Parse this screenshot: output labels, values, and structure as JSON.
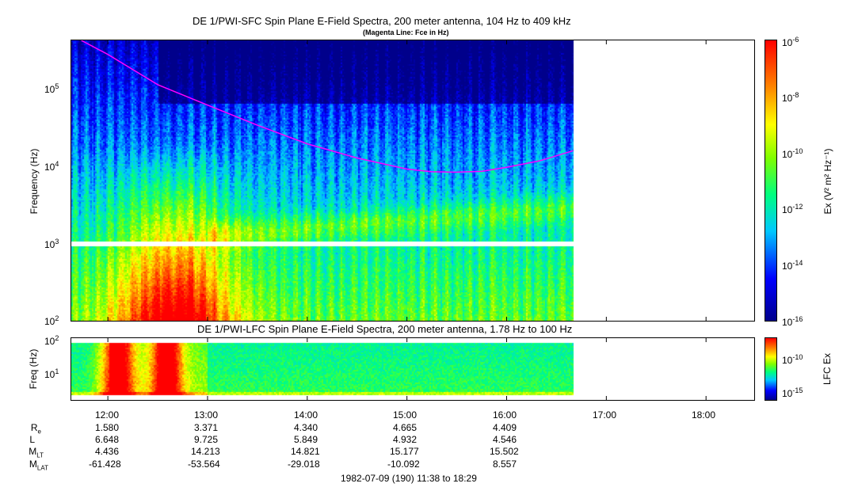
{
  "top_panel": {
    "title": "DE 1/PWI-SFC  Spin Plane E-Field Spectra, 200 meter antenna, 104 Hz to 409 kHz",
    "subtitle": "(Magenta Line: Fce in Hz)",
    "ylabel": "Frequency (Hz)",
    "y_ticks": [
      {
        "base": "10",
        "exp": "5"
      },
      {
        "base": "10",
        "exp": "4"
      },
      {
        "base": "10",
        "exp": "3"
      },
      {
        "base": "10",
        "exp": "2"
      }
    ],
    "colorbar_label": "Ex (V² m² Hz⁻¹)",
    "colorbar_ticks": [
      {
        "base": "10",
        "exp": "-6"
      },
      {
        "base": "10",
        "exp": "-8"
      },
      {
        "base": "10",
        "exp": "-10"
      },
      {
        "base": "10",
        "exp": "-12"
      },
      {
        "base": "10",
        "exp": "-14"
      },
      {
        "base": "10",
        "exp": "-16"
      }
    ]
  },
  "bottom_panel": {
    "title": "DE 1/PWI-LFC  Spin Plane E-Field Spectra, 200 meter antenna, 1.78 Hz to 100 Hz",
    "ylabel": "Freq (Hz)",
    "y_ticks": [
      {
        "base": "10",
        "exp": "2"
      },
      {
        "base": "10",
        "exp": "1"
      }
    ],
    "colorbar_label": "LFC Ex",
    "colorbar_ticks": [
      {
        "base": "10",
        "exp": "-10"
      },
      {
        "base": "10",
        "exp": "-15"
      }
    ]
  },
  "x_ticks": [
    "12:00",
    "13:00",
    "14:00",
    "15:00",
    "16:00",
    "17:00",
    "18:00"
  ],
  "ephemeris": {
    "rows": [
      {
        "name": "R",
        "sub": "e",
        "values": [
          "1.580",
          "3.371",
          "4.340",
          "4.665",
          "4.409"
        ]
      },
      {
        "name": "L",
        "sub": "",
        "values": [
          "6.648",
          "9.725",
          "5.849",
          "4.932",
          "4.546"
        ]
      },
      {
        "name": "M",
        "sub": "LT",
        "values": [
          "4.436",
          "14.213",
          "14.821",
          "15.177",
          "15.502"
        ]
      },
      {
        "name": "M",
        "sub": "LAT",
        "values": [
          "-61.428",
          "-53.564",
          "-29.018",
          "-10.092",
          "8.557"
        ]
      }
    ]
  },
  "footer": "1982-07-09 (190) 11:38 to 18:29",
  "chart_data": {
    "type": "heatmap",
    "title": "DE 1/PWI-SFC  Spin Plane E-Field Spectra, 200 meter antenna, 104 Hz to 409 kHz",
    "x_range_time": [
      "11:38",
      "18:29"
    ],
    "data_end_time": "16:40",
    "y_range_hz": [
      100,
      409000
    ],
    "y_scale": "log",
    "color_range": [
      1e-16,
      1e-06
    ],
    "color_scale": "log",
    "fce_line": {
      "x_time": [
        "11:44",
        "12:00",
        "12:30",
        "13:00",
        "13:30",
        "14:00",
        "14:30",
        "15:00",
        "15:15",
        "15:30",
        "15:45",
        "16:00",
        "16:20",
        "16:40"
      ],
      "y_hz": [
        409000,
        270000,
        110000,
        60000,
        33000,
        19000,
        12500,
        9000,
        8300,
        8200,
        8400,
        9500,
        11500,
        15500
      ]
    }
  }
}
